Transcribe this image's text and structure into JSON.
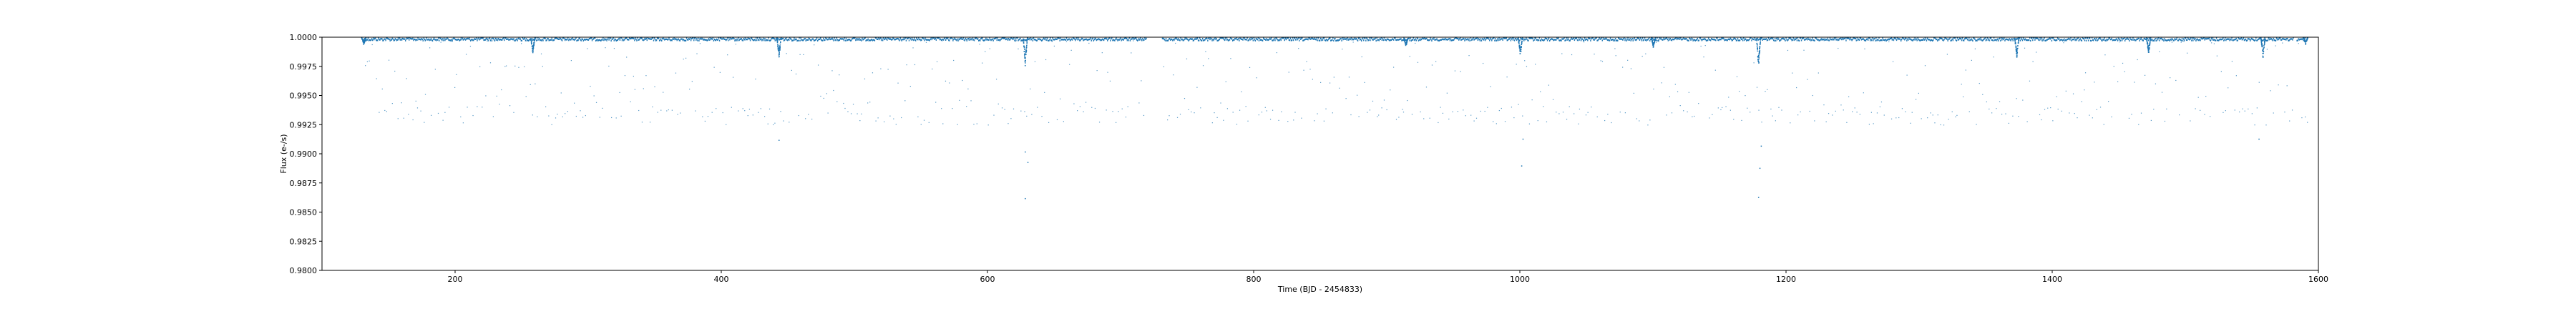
{
  "chart_data": {
    "type": "scatter",
    "title": "",
    "xlabel": "Time (BJD - 2454833)",
    "ylabel": "Flux (e-/s)",
    "xlim": [
      100,
      1600
    ],
    "ylim": [
      0.98,
      1.0
    ],
    "xticks": [
      200,
      400,
      600,
      800,
      1000,
      1200,
      1400,
      1600
    ],
    "yticks": [
      0.98,
      0.9825,
      0.985,
      0.9875,
      0.99,
      0.9925,
      0.995,
      0.9975,
      1.0
    ],
    "ytick_labels": [
      "0.9800",
      "0.9825",
      "0.9850",
      "0.9875",
      "0.9900",
      "0.9925",
      "0.9950",
      "0.9975",
      "1.0000"
    ],
    "grid": false,
    "color": "#1f77b4",
    "series": [
      {
        "description_points": "continuum",
        "x_range": [
          131,
          1591
        ],
        "continuum_level": 0.99995,
        "band_level": 0.9933,
        "gaps": [
          [
            719,
            731
          ],
          [
            1581,
            1583
          ]
        ]
      }
    ],
    "transits": [
      {
        "x": 131,
        "depth": 0.0006
      },
      {
        "x": 258,
        "depth": 0.0014
      },
      {
        "x": 443,
        "depth": 0.0018
      },
      {
        "x": 628,
        "depth": 0.0025
      },
      {
        "x": 914,
        "depth": 0.0008
      },
      {
        "x": 1000,
        "depth": 0.0016
      },
      {
        "x": 1100,
        "depth": 0.0009
      },
      {
        "x": 1179,
        "depth": 0.0026
      },
      {
        "x": 1373,
        "depth": 0.0018
      },
      {
        "x": 1472,
        "depth": 0.0014
      },
      {
        "x": 1558,
        "depth": 0.0018
      },
      {
        "x": 1590,
        "depth": 0.0006
      }
    ],
    "outliers": [
      {
        "x": 443,
        "y": 0.9912
      },
      {
        "x": 628,
        "y": 0.9902
      },
      {
        "x": 628,
        "y": 0.9862
      },
      {
        "x": 630,
        "y": 0.9893
      },
      {
        "x": 1001,
        "y": 0.989
      },
      {
        "x": 1002,
        "y": 0.9913
      },
      {
        "x": 1179,
        "y": 0.9863
      },
      {
        "x": 1180,
        "y": 0.9888
      },
      {
        "x": 1181,
        "y": 0.9907
      },
      {
        "x": 1555,
        "y": 0.9913
      }
    ]
  }
}
